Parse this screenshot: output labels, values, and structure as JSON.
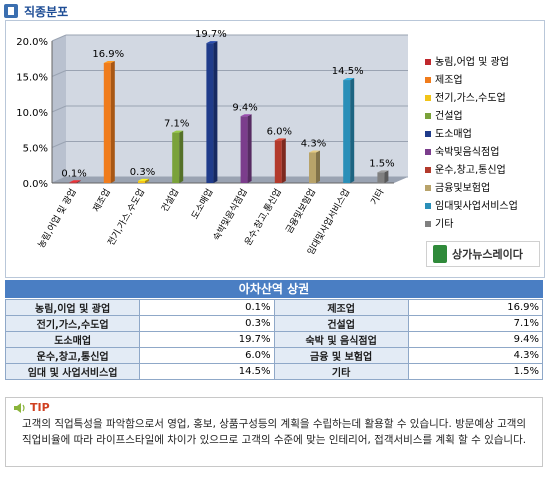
{
  "header": {
    "title": "직종분포"
  },
  "chart_data": {
    "type": "bar",
    "categories": [
      "농림,어업 및 광업",
      "제조업",
      "전기,가스,수도업",
      "건설업",
      "도소매업",
      "숙박및음식점업",
      "운수,창고,통신업",
      "금융및보험업",
      "임대및사업서비스업",
      "기타"
    ],
    "values": [
      0.1,
      16.9,
      0.3,
      7.1,
      19.7,
      9.4,
      6.0,
      4.3,
      14.5,
      1.5
    ],
    "value_labels": [
      "0.1%",
      "16.9%",
      "0.3%",
      "7.1%",
      "19.7%",
      "9.4%",
      "6.0%",
      "4.3%",
      "14.5%",
      "1.5%"
    ],
    "colors": [
      "#c0282d",
      "#f07c1c",
      "#f2c418",
      "#7aa23a",
      "#1f3b8a",
      "#7b3d8c",
      "#b33a2c",
      "#b8a36a",
      "#2a8fb8",
      "#808080"
    ],
    "yticks": [
      "0.0%",
      "5.0%",
      "10.0%",
      "15.0%",
      "20.0%"
    ],
    "ylim": [
      0,
      20
    ],
    "legend": [
      "농림,어업 및 광업",
      "제조업",
      "전기,가스,수도업",
      "건설업",
      "도소매업",
      "숙박및음식점업",
      "운수,창고,통신업",
      "금융및보험업",
      "임대및사업서비스업",
      "기타"
    ],
    "legend_position": "right",
    "grid": true
  },
  "logo": {
    "text": "상가뉴스레이다"
  },
  "table": {
    "title": "아차산역 상권",
    "rows": [
      [
        "농림,이업 및 광업",
        "0.1%",
        "제조업",
        "16.9%"
      ],
      [
        "전기,가스,수도업",
        "0.3%",
        "건설업",
        "7.1%"
      ],
      [
        "도소매업",
        "19.7%",
        "숙박 및 음식점업",
        "9.4%"
      ],
      [
        "운수,창고,통신업",
        "6.0%",
        "금융 및 보험업",
        "4.3%"
      ],
      [
        "임대 및 사업서비스업",
        "14.5%",
        "기타",
        "1.5%"
      ]
    ]
  },
  "tip": {
    "label": "TIP",
    "text": "고객의 직업특성을 파악함으로서 영업, 홍보, 상품구성등의 계획을 수립하는데 활용할 수 있습니다. 방문예상 고객의 직업비율에 따라 라이프스타일에 차이가 있으므로 고객의 수준에 맞는 인테리어, 접객서비스를 계획 할 수 있습니다."
  }
}
